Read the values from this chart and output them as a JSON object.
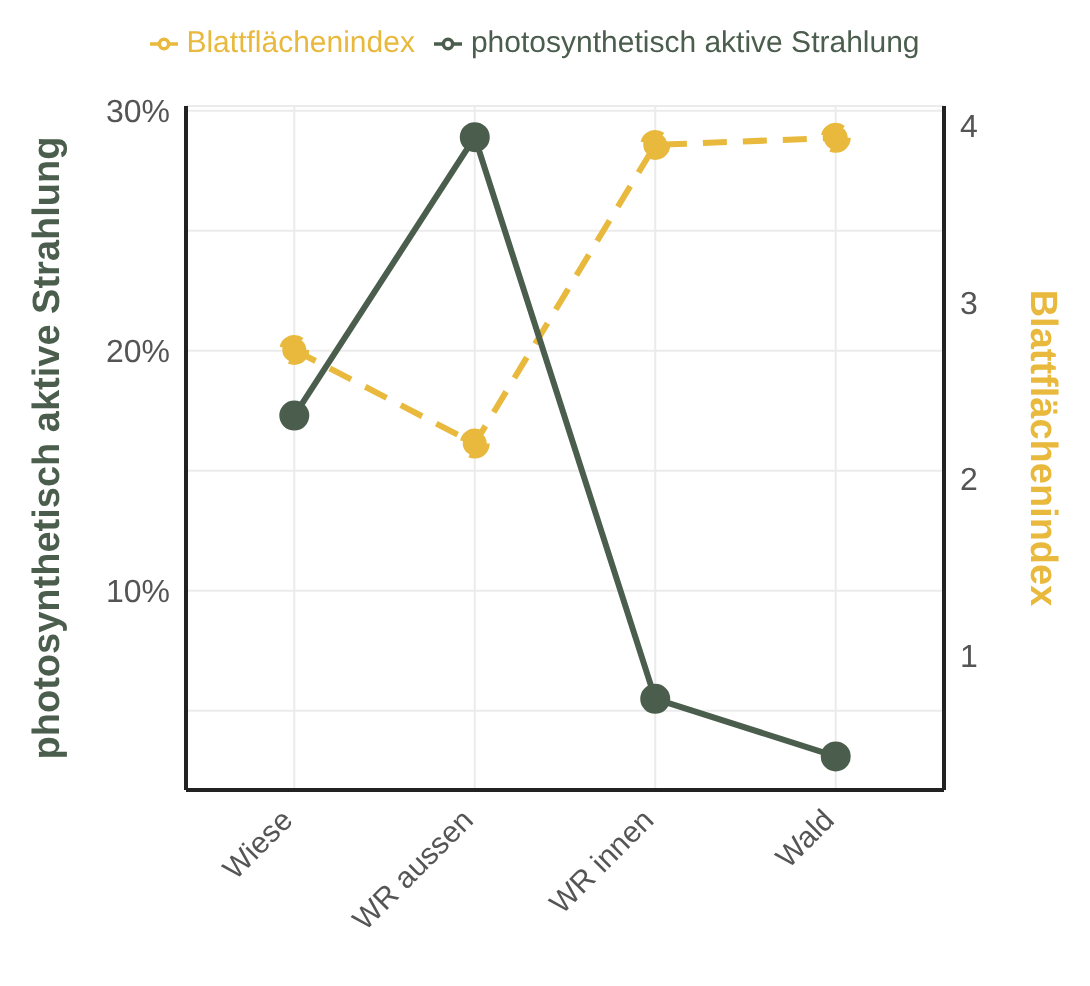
{
  "chart_data": {
    "type": "line",
    "ylabel": "photosynthetisch aktive Strahlung",
    "y2label": "Blattflächenindex",
    "categories": [
      "Wiese",
      "WR aussen",
      "WR innen",
      "Wald"
    ],
    "series": [
      {
        "name": "Blattflächenindex",
        "color": "#e8b93c",
        "axis": "y2",
        "line_style": "dashed",
        "values": [
          2.73,
          2.2,
          3.89,
          3.93
        ]
      },
      {
        "name": "photosynthetisch aktive Strahlung",
        "color": "#4b5e4d",
        "line_style": "solid",
        "values": [
          17.3,
          28.9,
          5.5,
          3.1
        ]
      }
    ],
    "ylim": [
      1.7,
      30.2
    ],
    "yticks": [
      {
        "value": 5,
        "label": null
      },
      {
        "value": 10,
        "label": "10%"
      },
      {
        "value": 15,
        "label": null
      },
      {
        "value": 20,
        "label": "20%"
      },
      {
        "value": 25,
        "label": null
      },
      {
        "value": 30,
        "label": "30%"
      }
    ],
    "y2lim": [
      0.24,
      4.11
    ],
    "y2ticks": [
      1,
      2,
      3,
      4
    ],
    "grid": true,
    "legend": "top",
    "marker": "circle"
  }
}
